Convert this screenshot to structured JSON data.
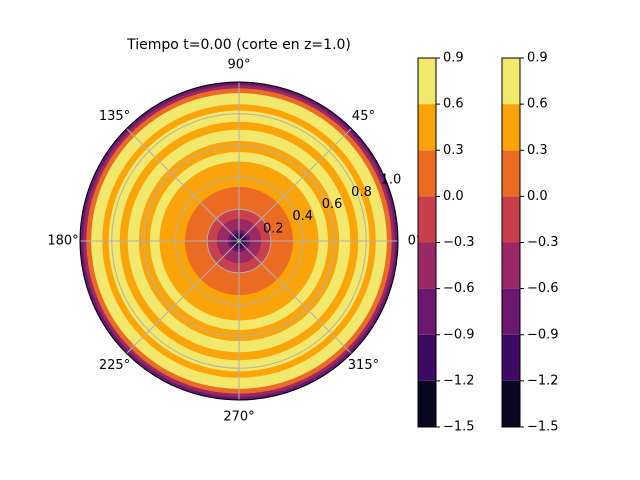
{
  "chart_data": {
    "type": "polar-contourf",
    "title": "Tiempo t=0.00 (corte en z=1.0)",
    "theta_ticks": [
      {
        "deg": 0,
        "label": "0°"
      },
      {
        "deg": 45,
        "label": "45°"
      },
      {
        "deg": 90,
        "label": "90°"
      },
      {
        "deg": 135,
        "label": "135°"
      },
      {
        "deg": 180,
        "label": "180°"
      },
      {
        "deg": 225,
        "label": "225°"
      },
      {
        "deg": 270,
        "label": "270°"
      },
      {
        "deg": 315,
        "label": "315°"
      }
    ],
    "r_ticks": [
      {
        "value": 0.2,
        "label": "0.2"
      },
      {
        "value": 0.4,
        "label": "0.4"
      },
      {
        "value": 0.6,
        "label": "0.6"
      },
      {
        "value": 0.8,
        "label": "0.8"
      },
      {
        "value": 1.0,
        "label": "1.0"
      }
    ],
    "rlim": [
      0,
      1.0
    ],
    "grid": true,
    "levels": [
      -1.5,
      -1.2,
      -0.9,
      -0.6,
      -0.3,
      0.0,
      0.3,
      0.6,
      0.9
    ],
    "level_colors": [
      "#0a0722",
      "#3e0a63",
      "#6b186e",
      "#9a2865",
      "#c93f4b",
      "#ec6b23",
      "#fba40a",
      "#f2e86b"
    ],
    "bands": [
      {
        "r_start": 0.0,
        "r_end": 0.03,
        "level": 0
      },
      {
        "r_start": 0.03,
        "r_end": 0.05,
        "level": 1
      },
      {
        "r_start": 0.05,
        "r_end": 0.07,
        "level": 2
      },
      {
        "r_start": 0.07,
        "r_end": 0.09,
        "level": 3
      },
      {
        "r_start": 0.09,
        "r_end": 0.14,
        "level": 3
      },
      {
        "r_start": 0.14,
        "r_end": 0.2,
        "level": 4
      },
      {
        "r_start": 0.2,
        "r_end": 0.34,
        "level": 5
      },
      {
        "r_start": 0.34,
        "r_end": 0.5,
        "level": 6
      },
      {
        "r_start": 0.5,
        "r_end": 0.56,
        "level": 7
      },
      {
        "r_start": 0.56,
        "r_end": 0.63,
        "level": 6
      },
      {
        "r_start": 0.63,
        "r_end": 0.7,
        "level": 7
      },
      {
        "r_start": 0.7,
        "r_end": 0.75,
        "level": 6
      },
      {
        "r_start": 0.75,
        "r_end": 0.82,
        "level": 7
      },
      {
        "r_start": 0.82,
        "r_end": 0.86,
        "level": 6
      },
      {
        "r_start": 0.86,
        "r_end": 0.93,
        "level": 7
      },
      {
        "r_start": 0.93,
        "r_end": 0.96,
        "level": 5
      },
      {
        "r_start": 0.96,
        "r_end": 0.98,
        "level": 3
      },
      {
        "r_start": 0.98,
        "r_end": 0.995,
        "level": 2
      },
      {
        "r_start": 0.995,
        "r_end": 1.0,
        "level": 1
      }
    ],
    "colorbars": [
      {
        "tick_labels": [
          "−1.5",
          "−1.2",
          "−0.9",
          "−0.6",
          "−0.3",
          "0.0",
          "0.3",
          "0.6",
          "0.9"
        ]
      },
      {
        "tick_labels": [
          "−1.5",
          "−1.2",
          "−0.9",
          "−0.6",
          "−0.3",
          "0.0",
          "0.3",
          "0.6",
          "0.9"
        ]
      }
    ]
  }
}
